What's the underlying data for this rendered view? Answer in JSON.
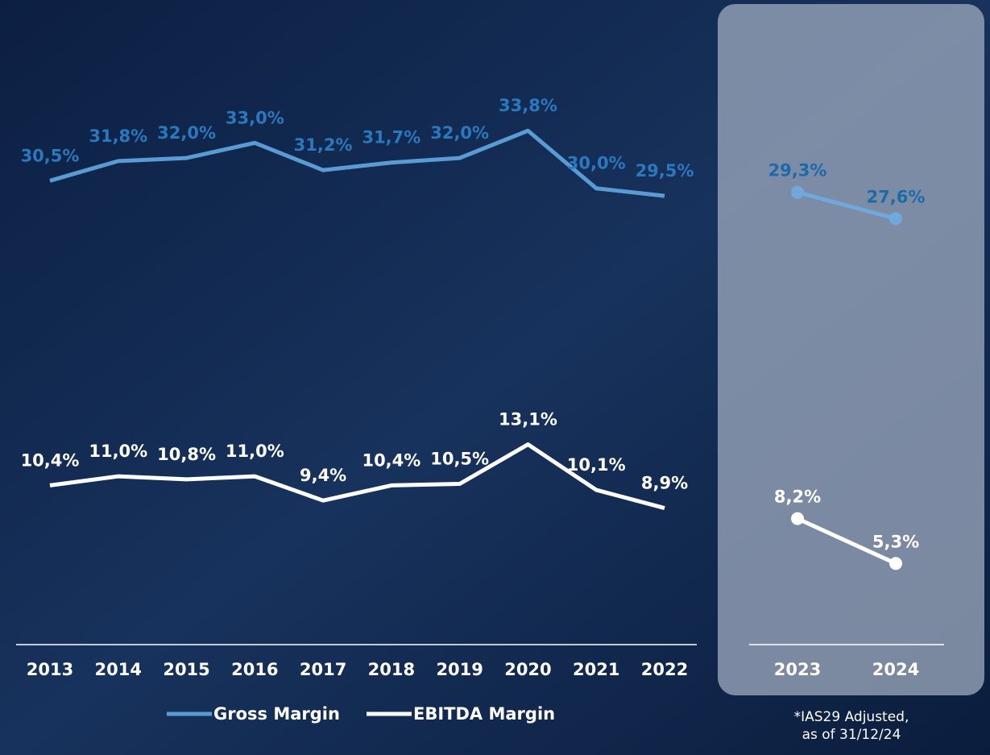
{
  "chart_data": [
    {
      "type": "line",
      "categories": [
        "2013",
        "2014",
        "2015",
        "2016",
        "2017",
        "2018",
        "2019",
        "2020",
        "2021",
        "2022"
      ],
      "ylim": [
        0,
        42
      ],
      "markers": false,
      "series": [
        {
          "name": "Gross Margin",
          "color": "#5b9bd5",
          "label_color": "#2a78bd",
          "values": [
            30.5,
            31.8,
            32.0,
            33.0,
            31.2,
            31.7,
            32.0,
            33.8,
            30.0,
            29.5
          ],
          "value_labels": [
            "30,5%",
            "31,8%",
            "32,0%",
            "33,0%",
            "31,2%",
            "31,7%",
            "32,0%",
            "33,8%",
            "30,0%",
            "29,5%"
          ]
        },
        {
          "name": "EBITDA Margin",
          "color": "#ffffff",
          "label_color": "#ffffff",
          "values": [
            10.4,
            11.0,
            10.8,
            11.0,
            9.4,
            10.4,
            10.5,
            13.1,
            10.1,
            8.9
          ],
          "value_labels": [
            "10,4%",
            "11,0%",
            "10,8%",
            "11,0%",
            "9,4%",
            "10,4%",
            "10,5%",
            "13,1%",
            "10,1%",
            "8,9%"
          ]
        }
      ]
    },
    {
      "type": "line",
      "categories": [
        "2023",
        "2024"
      ],
      "ylim": [
        0,
        42
      ],
      "markers": true,
      "series": [
        {
          "color": "#6fa8dc",
          "label_color": "#1c6aa8",
          "values": [
            29.3,
            27.6
          ],
          "value_labels": [
            "29,3%",
            "27,6%"
          ]
        },
        {
          "color": "#ffffff",
          "label_color": "#ffffff",
          "values": [
            8.2,
            5.3
          ],
          "value_labels": [
            "8,2%",
            "5,3%"
          ]
        }
      ],
      "note": [
        "*IAS29 Adjusted,",
        "as of 31/12/24"
      ]
    }
  ]
}
